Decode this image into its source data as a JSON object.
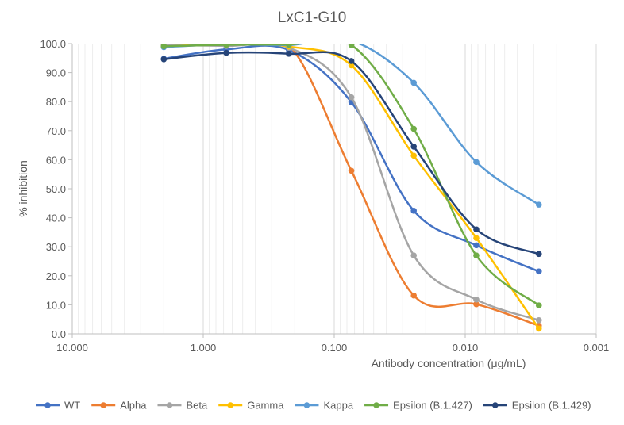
{
  "chart_data": {
    "type": "line",
    "title": "LxC1-G10",
    "xlabel": "Antibody concentration (μg/mL)",
    "ylabel": "% inhibition",
    "x_scale": "log",
    "x_reversed": true,
    "xlim": [
      10,
      0.001
    ],
    "ylim": [
      0,
      100
    ],
    "x_ticks": [
      10,
      1,
      0.1,
      0.01,
      0.001
    ],
    "x_tick_labels": [
      "10.000",
      "1.000",
      "0.100",
      "0.010",
      "0.001"
    ],
    "y_ticks": [
      0,
      10,
      20,
      30,
      40,
      50,
      60,
      70,
      80,
      90,
      100
    ],
    "y_tick_labels": [
      "0.0",
      "10.0",
      "20.0",
      "30.0",
      "40.0",
      "50.0",
      "60.0",
      "70.0",
      "80.0",
      "90.0",
      "100.0"
    ],
    "grid": "vertical log gridlines",
    "legend_position": "bottom",
    "x": [
      2,
      0.667,
      0.222,
      0.074,
      0.0247,
      0.00823,
      0.00274
    ],
    "series": [
      {
        "name": "WT",
        "color": "#4472C4",
        "values": [
          94.8,
          98.0,
          97.8,
          79.8,
          42.4,
          30.5,
          21.5
        ]
      },
      {
        "name": "Alpha",
        "color": "#ED7D31",
        "values": [
          99.9,
          99.9,
          99.5,
          56.2,
          13.2,
          10.2,
          2.8
        ]
      },
      {
        "name": "Beta",
        "color": "#A5A5A5",
        "values": [
          99.5,
          99.2,
          98.6,
          81.5,
          27.0,
          11.8,
          4.7
        ]
      },
      {
        "name": "Gamma",
        "color": "#FFC000",
        "values": [
          99.0,
          99.8,
          99.0,
          92.5,
          61.4,
          33.0,
          1.8
        ]
      },
      {
        "name": "Kappa",
        "color": "#5B9BD5",
        "values": [
          98.8,
          99.8,
          99.5,
          101.0,
          86.5,
          59.2,
          44.5
        ]
      },
      {
        "name": "Epsilon (B.1.427)",
        "color": "#70AD47",
        "values": [
          99.1,
          99.6,
          99.7,
          99.5,
          70.6,
          27.0,
          9.8
        ]
      },
      {
        "name": "Epsilon (B.1.429)",
        "color": "#264478",
        "values": [
          94.6,
          96.8,
          96.5,
          94.0,
          64.5,
          36.0,
          27.5
        ]
      }
    ]
  }
}
